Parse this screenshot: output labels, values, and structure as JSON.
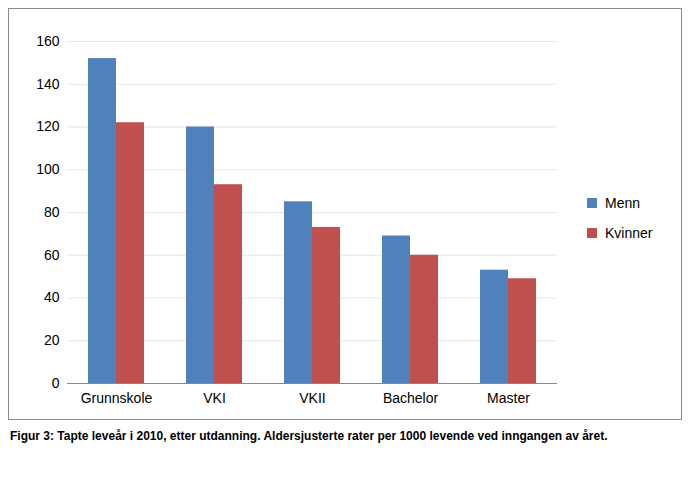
{
  "chart_data": {
    "type": "bar",
    "title": "Figur 3: Tapte leveår i 2010, etter utdanning. Aldersjusterte rater per 1000 levende ved inngangen av året.",
    "categories": [
      "Grunnskole",
      "VKI",
      "VKII",
      "Bachelor",
      "Master"
    ],
    "series": [
      {
        "name": "Menn",
        "color": "#4f81bd",
        "values": [
          152,
          120,
          85,
          69,
          53
        ]
      },
      {
        "name": "Kvinner",
        "color": "#c0504d",
        "values": [
          122,
          93,
          73,
          60,
          49
        ]
      }
    ],
    "ylim": [
      0,
      160
    ],
    "yticks": [
      0,
      20,
      40,
      60,
      80,
      100,
      120,
      140,
      160
    ],
    "grid": true,
    "legend": "right"
  }
}
